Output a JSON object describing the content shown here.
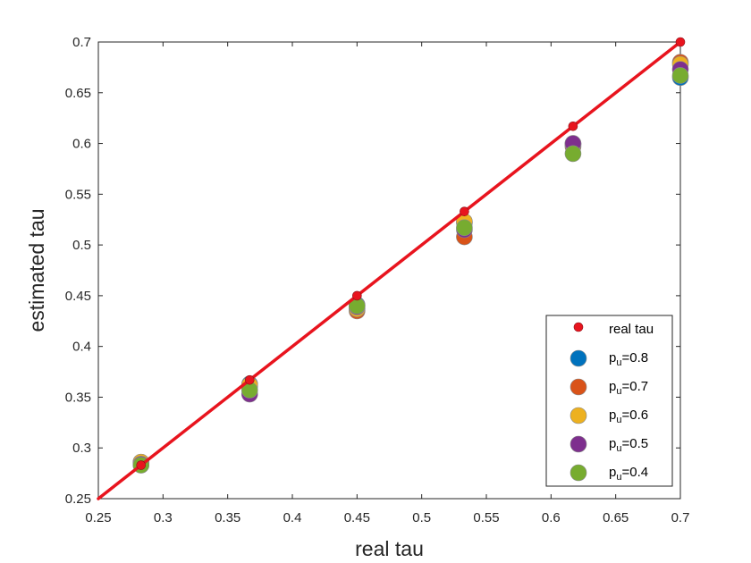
{
  "chart_data": {
    "type": "scatter",
    "xlabel": "real tau",
    "ylabel": "estimated tau",
    "xlim": [
      0.25,
      0.7
    ],
    "ylim": [
      0.25,
      0.7
    ],
    "xticks": [
      "0.25",
      "0.3",
      "0.35",
      "0.4",
      "0.45",
      "0.5",
      "0.55",
      "0.6",
      "0.65",
      "0.7"
    ],
    "yticks": [
      "0.25",
      "0.3",
      "0.35",
      "0.4",
      "0.45",
      "0.5",
      "0.55",
      "0.6",
      "0.65",
      "0.7"
    ],
    "grid": false,
    "legend_position": "bottom-right",
    "x": [
      0.283,
      0.367,
      0.45,
      0.533,
      0.617,
      0.7
    ],
    "reference_line": {
      "name": "real tau",
      "from": [
        0.25,
        0.25
      ],
      "to": [
        0.7,
        0.7
      ],
      "color": "#e8141e"
    },
    "series": [
      {
        "name": "real tau",
        "color": "#e8141e",
        "values": [
          0.283,
          0.367,
          0.45,
          0.533,
          0.617,
          0.7
        ]
      },
      {
        "name": "p",
        "sub": "u",
        "suffix": "=0.8",
        "color": "#0072bd",
        "values": [
          0.285,
          0.363,
          0.441,
          0.522,
          0.6,
          0.665
        ]
      },
      {
        "name": "p",
        "sub": "u",
        "suffix": "=0.7",
        "color": "#d95319",
        "values": [
          0.286,
          0.361,
          0.435,
          0.508,
          0.597,
          0.68
        ]
      },
      {
        "name": "p",
        "sub": "u",
        "suffix": "=0.6",
        "color": "#edb120",
        "values": [
          0.286,
          0.362,
          0.437,
          0.523,
          0.599,
          0.678
        ]
      },
      {
        "name": "p",
        "sub": "u",
        "suffix": "=0.5",
        "color": "#7e2f8e",
        "values": [
          0.284,
          0.353,
          0.439,
          0.515,
          0.6,
          0.673
        ]
      },
      {
        "name": "p",
        "sub": "u",
        "suffix": "=0.4",
        "color": "#77ac30",
        "values": [
          0.283,
          0.357,
          0.44,
          0.517,
          0.59,
          0.667
        ]
      }
    ]
  }
}
